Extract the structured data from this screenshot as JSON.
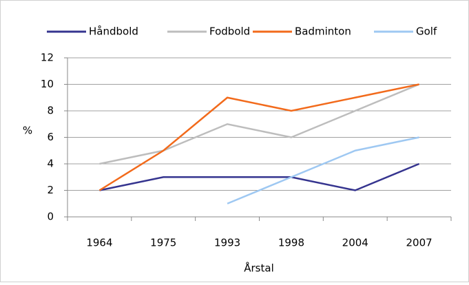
{
  "chart_data": {
    "type": "line",
    "categories": [
      "1964",
      "1975",
      "1993",
      "1998",
      "2004",
      "2007"
    ],
    "series": [
      {
        "name": "Håndbold",
        "color": "#35348f",
        "values": [
          2,
          3,
          3,
          3,
          2,
          4
        ]
      },
      {
        "name": "Fodbold",
        "color": "#bdbdbd",
        "values": [
          4,
          5,
          7,
          6,
          8,
          10
        ]
      },
      {
        "name": "Badminton",
        "color": "#f26a1b",
        "values": [
          2,
          5,
          9,
          8,
          9,
          10
        ]
      },
      {
        "name": "Golf",
        "color": "#9ec8f2",
        "values": [
          null,
          null,
          1,
          3,
          5,
          6
        ]
      }
    ],
    "ylim": [
      0,
      12
    ],
    "yticks": [
      0,
      2,
      4,
      6,
      8,
      10,
      12
    ],
    "y_label": "%",
    "x_label": "Årstal",
    "grid": true,
    "legend": "top"
  }
}
